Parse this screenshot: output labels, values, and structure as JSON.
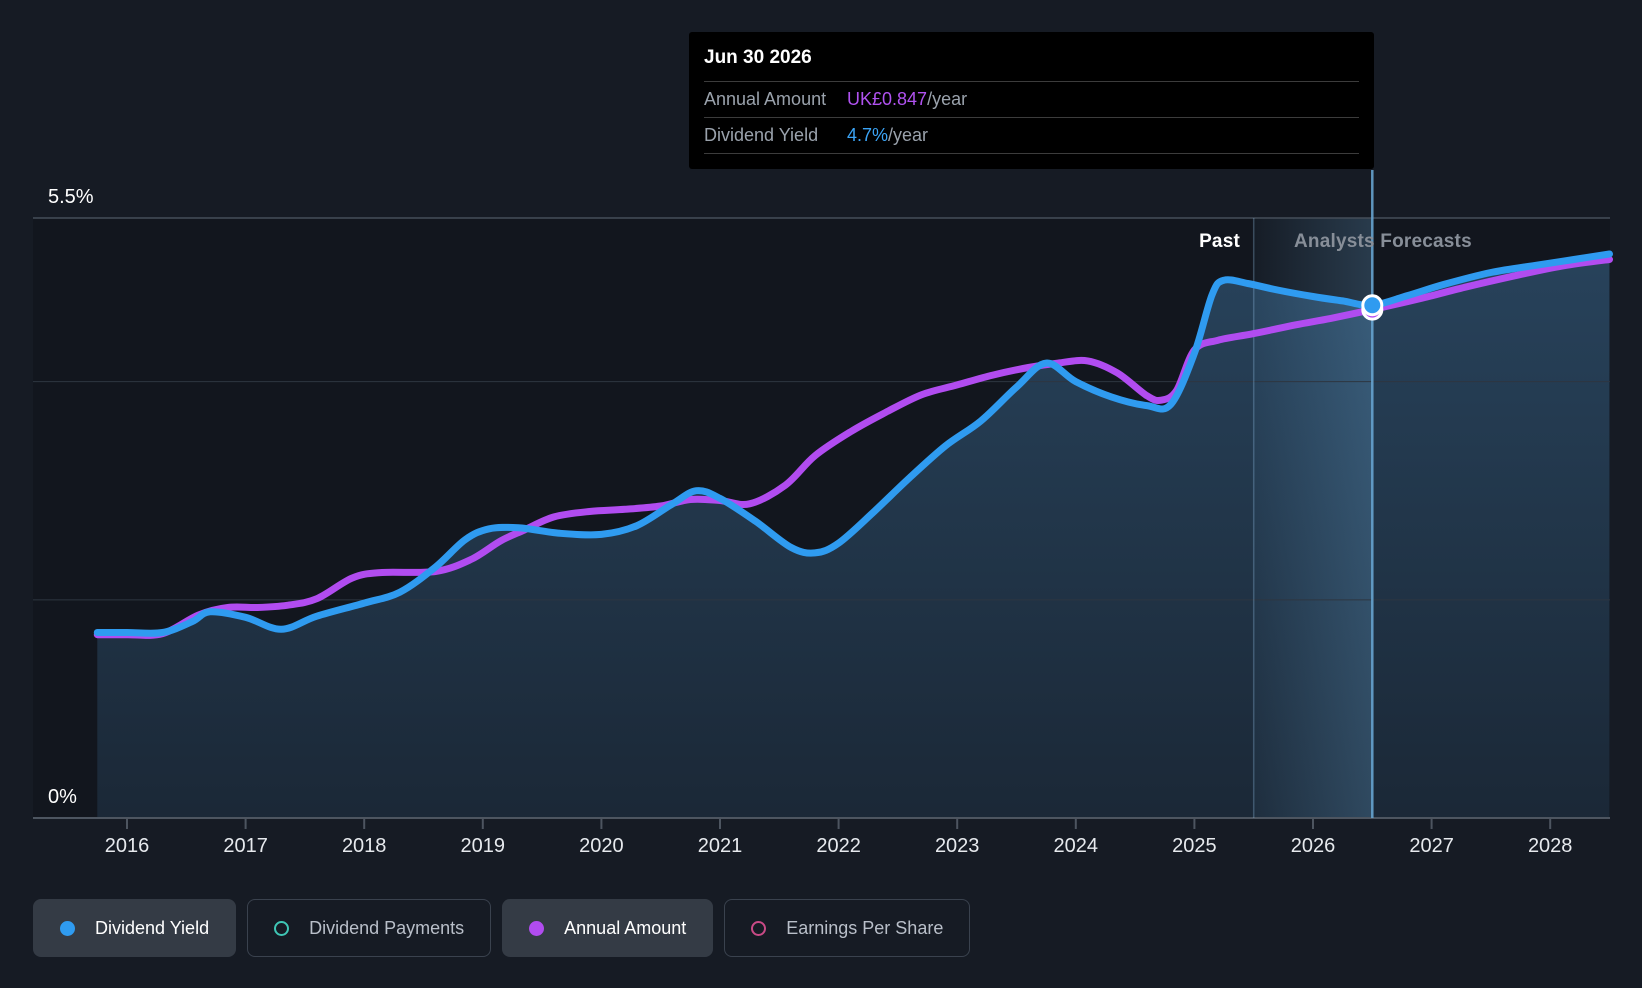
{
  "colors": {
    "page_bg": "#161b24",
    "plot_bg": "#12161e",
    "dividend_yield_blue": "#2f9bf0",
    "annual_amount_purple": "#b14cf0",
    "dividend_payments_teal": "#3fc6b5",
    "earnings_per_share_pink": "#c94a86",
    "grid_top": "#454e59",
    "grid_mid": "#2e3641",
    "axis": "#4d5560",
    "tick_text": "#e7eaee",
    "hover_line": "#66a3cf",
    "area_fill_rgb": "85,160,220",
    "band_rgb": "120,190,240"
  },
  "tooltip": {
    "date": "Jun 30 2026",
    "rows": [
      {
        "label": "Annual Amount",
        "value": "UK£0.847",
        "suffix": "/year",
        "color": "#b052f0"
      },
      {
        "label": "Dividend Yield",
        "value": "4.7%",
        "suffix": "/year",
        "color": "#3ba4f6"
      }
    ]
  },
  "annotations": {
    "past": "Past",
    "forecast": "Analysts Forecasts"
  },
  "legend": [
    {
      "label": "Dividend Yield",
      "color": "#2f9bf0",
      "style": "filled",
      "active": true
    },
    {
      "label": "Dividend Payments",
      "color": "#3fc6b5",
      "style": "outline",
      "active": false
    },
    {
      "label": "Annual Amount",
      "color": "#b14cf0",
      "style": "filled",
      "active": true
    },
    {
      "label": "Earnings Per Share",
      "color": "#c94a86",
      "style": "outline",
      "active": false
    }
  ],
  "chart_data": {
    "type": "area",
    "title": "Dividend history and forecast",
    "x_range": [
      2015.73,
      2028.5
    ],
    "ylim": [
      0,
      5.5
    ],
    "y_axis_labels": [
      {
        "value": 5.5,
        "text": "5.5%"
      },
      {
        "value": 0,
        "text": "0%"
      }
    ],
    "gridline_values": [
      5.5,
      4.0,
      2.0
    ],
    "x_ticks": [
      "2016",
      "2017",
      "2018",
      "2019",
      "2020",
      "2021",
      "2022",
      "2023",
      "2024",
      "2025",
      "2026",
      "2027",
      "2028"
    ],
    "x_tick_years": [
      2016,
      2017,
      2018,
      2019,
      2020,
      2021,
      2022,
      2023,
      2024,
      2025,
      2026,
      2027,
      2028
    ],
    "divider_year": 2025.5,
    "hover_year": 2026.5,
    "hover": {
      "date": "Jun 30 2026",
      "annual_amount": "UK£0.847/year",
      "dividend_yield": "4.7%/year"
    },
    "series": [
      {
        "name": "Annual Amount",
        "unit": "display percent of yield axis",
        "color": "#b14cf0",
        "area": false,
        "points": [
          [
            2015.75,
            1.68
          ],
          [
            2016.0,
            1.68
          ],
          [
            2016.3,
            1.69
          ],
          [
            2016.6,
            1.86
          ],
          [
            2016.85,
            1.93
          ],
          [
            2017.1,
            1.93
          ],
          [
            2017.35,
            1.95
          ],
          [
            2017.6,
            2.01
          ],
          [
            2017.9,
            2.2
          ],
          [
            2018.15,
            2.25
          ],
          [
            2018.6,
            2.26
          ],
          [
            2018.9,
            2.37
          ],
          [
            2019.15,
            2.54
          ],
          [
            2019.35,
            2.64
          ],
          [
            2019.6,
            2.76
          ],
          [
            2019.9,
            2.81
          ],
          [
            2020.2,
            2.83
          ],
          [
            2020.5,
            2.86
          ],
          [
            2020.75,
            2.92
          ],
          [
            2021.0,
            2.91
          ],
          [
            2021.25,
            2.88
          ],
          [
            2021.55,
            3.05
          ],
          [
            2021.8,
            3.32
          ],
          [
            2022.1,
            3.54
          ],
          [
            2022.4,
            3.72
          ],
          [
            2022.7,
            3.88
          ],
          [
            2023.0,
            3.97
          ],
          [
            2023.3,
            4.06
          ],
          [
            2023.6,
            4.13
          ],
          [
            2023.85,
            4.17
          ],
          [
            2024.1,
            4.19
          ],
          [
            2024.35,
            4.08
          ],
          [
            2024.6,
            3.87
          ],
          [
            2024.72,
            3.83
          ],
          [
            2024.85,
            3.92
          ],
          [
            2025.0,
            4.29
          ],
          [
            2025.2,
            4.38
          ],
          [
            2025.5,
            4.44
          ],
          [
            2025.85,
            4.52
          ],
          [
            2026.15,
            4.58
          ],
          [
            2026.5,
            4.66
          ],
          [
            2026.9,
            4.76
          ],
          [
            2027.3,
            4.87
          ],
          [
            2027.7,
            4.97
          ],
          [
            2028.1,
            5.06
          ],
          [
            2028.5,
            5.12
          ]
        ]
      },
      {
        "name": "Dividend Yield",
        "unit": "percent",
        "color": "#2f9bf0",
        "area": true,
        "points": [
          [
            2015.75,
            1.7
          ],
          [
            2016.0,
            1.7
          ],
          [
            2016.3,
            1.7
          ],
          [
            2016.55,
            1.8
          ],
          [
            2016.7,
            1.89
          ],
          [
            2017.0,
            1.84
          ],
          [
            2017.3,
            1.73
          ],
          [
            2017.6,
            1.85
          ],
          [
            2018.0,
            1.97
          ],
          [
            2018.3,
            2.07
          ],
          [
            2018.6,
            2.3
          ],
          [
            2018.85,
            2.55
          ],
          [
            2019.05,
            2.65
          ],
          [
            2019.3,
            2.66
          ],
          [
            2019.65,
            2.61
          ],
          [
            2020.0,
            2.6
          ],
          [
            2020.3,
            2.68
          ],
          [
            2020.6,
            2.88
          ],
          [
            2020.8,
            3.0
          ],
          [
            2021.0,
            2.93
          ],
          [
            2021.3,
            2.72
          ],
          [
            2021.6,
            2.48
          ],
          [
            2021.8,
            2.43
          ],
          [
            2022.0,
            2.52
          ],
          [
            2022.3,
            2.81
          ],
          [
            2022.6,
            3.12
          ],
          [
            2022.9,
            3.41
          ],
          [
            2023.2,
            3.64
          ],
          [
            2023.5,
            3.95
          ],
          [
            2023.75,
            4.17
          ],
          [
            2024.0,
            4.0
          ],
          [
            2024.3,
            3.86
          ],
          [
            2024.6,
            3.78
          ],
          [
            2024.8,
            3.79
          ],
          [
            2025.0,
            4.26
          ],
          [
            2025.15,
            4.8
          ],
          [
            2025.25,
            4.93
          ],
          [
            2025.45,
            4.9
          ],
          [
            2025.7,
            4.84
          ],
          [
            2026.0,
            4.78
          ],
          [
            2026.25,
            4.74
          ],
          [
            2026.5,
            4.7
          ],
          [
            2026.8,
            4.79
          ],
          [
            2027.1,
            4.89
          ],
          [
            2027.5,
            5.0
          ],
          [
            2027.9,
            5.07
          ],
          [
            2028.2,
            5.12
          ],
          [
            2028.5,
            5.17
          ]
        ]
      }
    ],
    "hover_markers": [
      {
        "series": "Dividend Yield",
        "year": 2026.5,
        "value": 4.7,
        "color": "#2f9bf0"
      },
      {
        "series": "Annual Amount",
        "year": 2026.5,
        "value": 4.66,
        "color": "#b14cf0"
      }
    ],
    "legend_position": "bottom",
    "grid": true
  }
}
